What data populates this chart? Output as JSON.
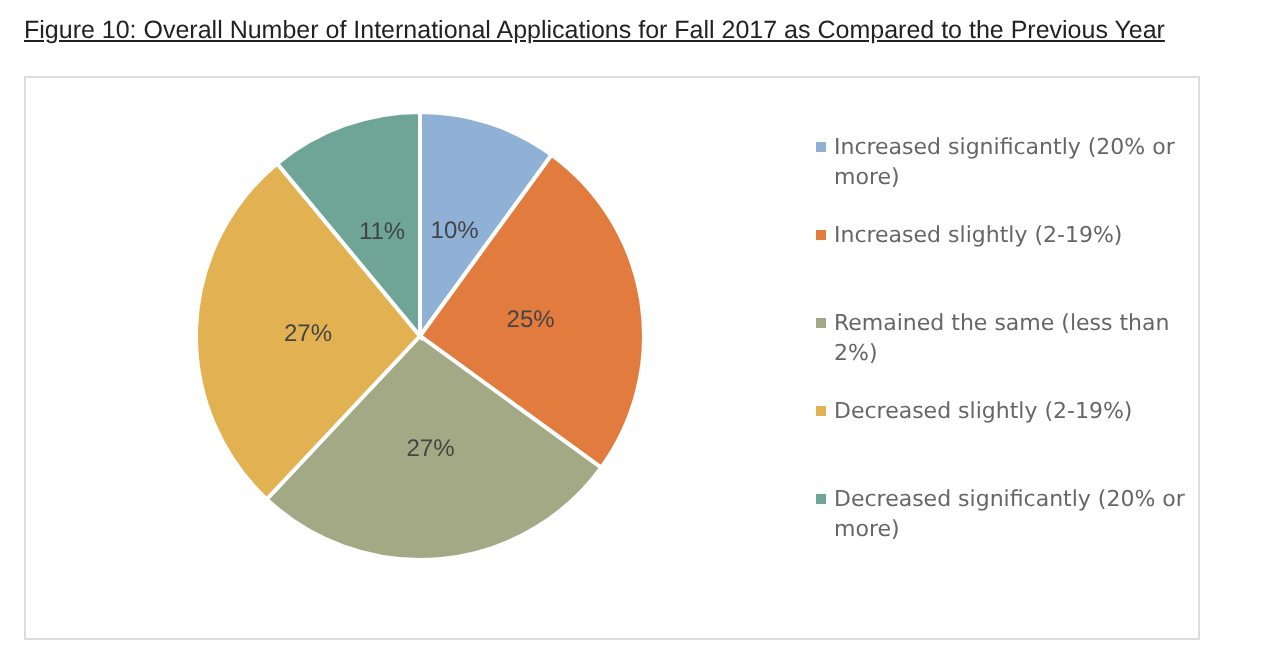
{
  "chart_data": {
    "type": "pie",
    "title": "Figure 10: Overall Number of International Applications for Fall 2017 as Compared to the Previous Year",
    "categories": [
      "Increased significantly (20% or more)",
      "Increased slightly (2-19%)",
      "Remained the same (less than 2%)",
      "Decreased slightly (2-19%)",
      "Decreased significantly (20% or more)"
    ],
    "values": [
      10,
      25,
      27,
      27,
      11
    ],
    "colors": [
      "#8fb1d6",
      "#e27b3e",
      "#a4a985",
      "#e2b252",
      "#6ea597"
    ],
    "value_labels": [
      "10%",
      "25%",
      "27%",
      "27%",
      "11%"
    ],
    "legend": "right"
  }
}
